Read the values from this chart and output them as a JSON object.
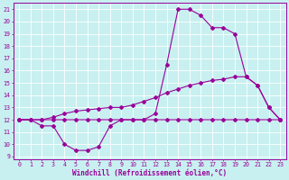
{
  "xlabel": "Windchill (Refroidissement éolien,°C)",
  "bg_color": "#c8f0f0",
  "grid_color": "#b0d8d8",
  "line_color": "#990099",
  "xlim": [
    -0.5,
    23.5
  ],
  "ylim": [
    8.8,
    21.5
  ],
  "xticks": [
    0,
    1,
    2,
    3,
    4,
    5,
    6,
    7,
    8,
    9,
    10,
    11,
    12,
    13,
    14,
    15,
    16,
    17,
    18,
    19,
    20,
    21,
    22,
    23
  ],
  "yticks": [
    9,
    10,
    11,
    12,
    13,
    14,
    15,
    16,
    17,
    18,
    19,
    20,
    21
  ],
  "line1_x": [
    0,
    1,
    2,
    3,
    4,
    5,
    6,
    7,
    8,
    9,
    10,
    11,
    12,
    13,
    14,
    15,
    16,
    17,
    18,
    19,
    20,
    21,
    22,
    23
  ],
  "line1_y": [
    12.0,
    12.0,
    11.5,
    11.5,
    10.0,
    9.5,
    9.5,
    9.8,
    11.5,
    12.0,
    12.0,
    12.0,
    12.0,
    12.0,
    12.0,
    12.0,
    12.0,
    12.0,
    12.0,
    12.0,
    12.0,
    12.0,
    12.0,
    12.0
  ],
  "line2_x": [
    0,
    1,
    2,
    3,
    4,
    5,
    6,
    7,
    8,
    9,
    10,
    11,
    12,
    13,
    14,
    15,
    16,
    17,
    18,
    19,
    20,
    21,
    22,
    23
  ],
  "line2_y": [
    12.0,
    12.0,
    12.0,
    12.2,
    12.5,
    12.7,
    12.8,
    12.9,
    13.0,
    13.0,
    13.2,
    13.5,
    13.8,
    14.2,
    14.5,
    14.8,
    15.0,
    15.2,
    15.3,
    15.5,
    15.5,
    14.8,
    13.0,
    12.0
  ],
  "line3_x": [
    0,
    1,
    2,
    3,
    4,
    5,
    6,
    7,
    8,
    9,
    10,
    11,
    12,
    13,
    14,
    15,
    16,
    17,
    18,
    19,
    20,
    21,
    22,
    23
  ],
  "line3_y": [
    12.0,
    12.0,
    12.0,
    12.0,
    12.0,
    12.0,
    12.0,
    12.0,
    12.0,
    12.0,
    12.0,
    12.0,
    12.5,
    16.5,
    21.0,
    21.0,
    20.5,
    19.5,
    19.5,
    19.0,
    15.5,
    14.8,
    13.0,
    12.0
  ],
  "marker": "D",
  "markersize": 2.0,
  "linewidth": 0.8,
  "tick_fontsize": 4.8,
  "xlabel_fontsize": 5.5
}
